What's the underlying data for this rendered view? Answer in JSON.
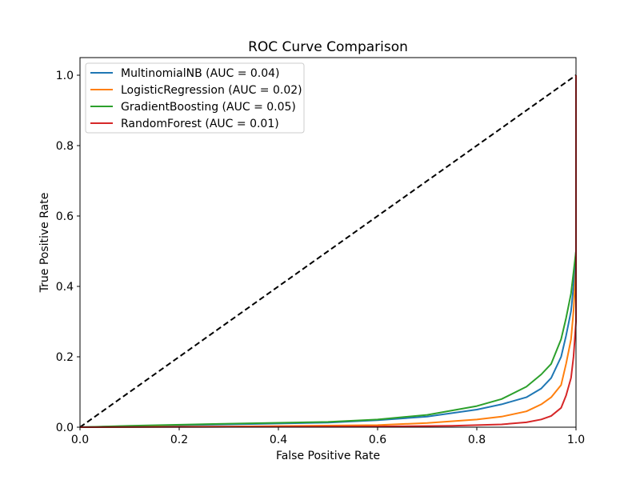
{
  "chart_data": {
    "type": "line",
    "title": "ROC Curve Comparison",
    "xlabel": "False Positive Rate",
    "ylabel": "True Positive Rate",
    "xlim": [
      0.0,
      1.0
    ],
    "ylim": [
      0.0,
      1.05
    ],
    "xticks": [
      0.0,
      0.2,
      0.4,
      0.6,
      0.8,
      1.0
    ],
    "yticks": [
      0.0,
      0.2,
      0.4,
      0.6,
      0.8,
      1.0
    ],
    "xtick_labels": [
      "0.0",
      "0.2",
      "0.4",
      "0.6",
      "0.8",
      "1.0"
    ],
    "ytick_labels": [
      "0.0",
      "0.2",
      "0.4",
      "0.6",
      "0.8",
      "1.0"
    ],
    "grid": false,
    "legend_position": "upper-left",
    "series": [
      {
        "name": "MultinomialNB (AUC = 0.04)",
        "color": "#1f77b4",
        "x": [
          0.0,
          0.1,
          0.3,
          0.5,
          0.6,
          0.7,
          0.8,
          0.85,
          0.9,
          0.93,
          0.95,
          0.97,
          0.98,
          0.99,
          0.995,
          1.0,
          1.0
        ],
        "y": [
          0.0,
          0.003,
          0.008,
          0.013,
          0.02,
          0.03,
          0.05,
          0.065,
          0.085,
          0.11,
          0.14,
          0.2,
          0.26,
          0.33,
          0.4,
          0.5,
          1.0
        ]
      },
      {
        "name": "LogisticRegression (AUC = 0.02)",
        "color": "#ff7f0e",
        "x": [
          0.0,
          0.3,
          0.6,
          0.7,
          0.8,
          0.85,
          0.9,
          0.93,
          0.95,
          0.97,
          0.98,
          0.99,
          0.995,
          1.0,
          1.0
        ],
        "y": [
          0.0,
          0.002,
          0.006,
          0.012,
          0.022,
          0.03,
          0.045,
          0.065,
          0.085,
          0.12,
          0.18,
          0.25,
          0.33,
          0.45,
          1.0
        ]
      },
      {
        "name": "GradientBoosting (AUC = 0.05)",
        "color": "#2ca02c",
        "x": [
          0.0,
          0.1,
          0.3,
          0.5,
          0.6,
          0.7,
          0.8,
          0.85,
          0.9,
          0.93,
          0.95,
          0.97,
          0.98,
          0.99,
          1.0,
          1.0
        ],
        "y": [
          0.0,
          0.004,
          0.01,
          0.015,
          0.022,
          0.035,
          0.06,
          0.08,
          0.115,
          0.15,
          0.18,
          0.25,
          0.31,
          0.38,
          0.5,
          1.0
        ]
      },
      {
        "name": "RandomForest (AUC = 0.01)",
        "color": "#d62728",
        "x": [
          0.0,
          0.3,
          0.6,
          0.75,
          0.85,
          0.9,
          0.93,
          0.95,
          0.97,
          0.98,
          0.99,
          0.995,
          1.0,
          1.0
        ],
        "y": [
          0.0,
          0.001,
          0.002,
          0.004,
          0.008,
          0.014,
          0.022,
          0.032,
          0.055,
          0.09,
          0.14,
          0.2,
          0.3,
          1.0
        ]
      }
    ],
    "reference_line": {
      "x": [
        0.0,
        1.0
      ],
      "y": [
        0.0,
        1.0
      ],
      "color": "#000000",
      "style": "dashed"
    }
  }
}
